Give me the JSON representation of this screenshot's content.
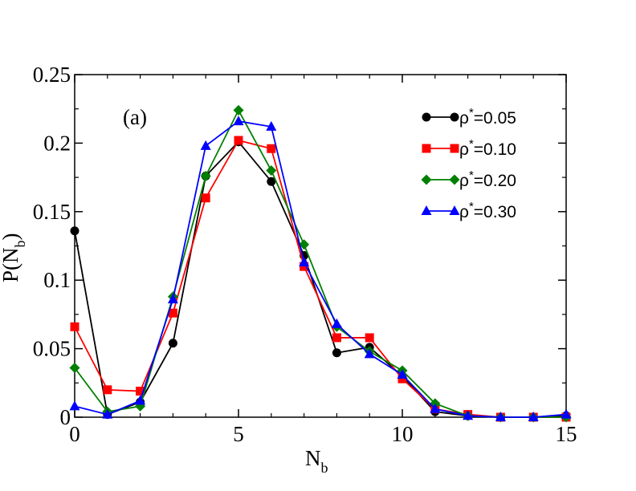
{
  "chart_data": {
    "type": "line",
    "panel_label": "(a)",
    "xlabel": {
      "main": "N",
      "sub": "b"
    },
    "ylabel": {
      "prefix": "P(N",
      "sub": "b",
      "suffix": ")"
    },
    "xlim": [
      0,
      15
    ],
    "ylim": [
      0,
      0.25
    ],
    "xticks": [
      0,
      5,
      10,
      15
    ],
    "xtick_labels": [
      "0",
      "5",
      "10",
      "15"
    ],
    "yticks": [
      0,
      0.05,
      0.1,
      0.15,
      0.2,
      0.25
    ],
    "ytick_labels": [
      "0",
      "0.05",
      "0.1",
      "0.15",
      "0.2",
      "0.25"
    ],
    "legend_position": "top-right",
    "series": [
      {
        "name": "ρ*=0.05",
        "legend": {
          "base": "ρ",
          "sup": "*",
          "value": "=0.05"
        },
        "color": "#000000",
        "marker": "circle",
        "x": [
          0,
          1,
          2,
          3,
          4,
          5,
          6,
          7,
          8,
          9,
          10,
          11,
          12,
          13,
          14,
          15
        ],
        "values": [
          0.136,
          0.002,
          0.011,
          0.054,
          0.176,
          0.201,
          0.172,
          0.118,
          0.047,
          0.051,
          0.03,
          0.004,
          0.001,
          0.0,
          0.0,
          0.001
        ]
      },
      {
        "name": "ρ*=0.10",
        "legend": {
          "base": "ρ",
          "sup": "*",
          "value": "=0.10"
        },
        "color": "#ff0000",
        "marker": "square",
        "x": [
          0,
          1,
          2,
          3,
          4,
          5,
          6,
          7,
          8,
          9,
          10,
          11,
          12,
          13,
          14,
          15
        ],
        "values": [
          0.066,
          0.02,
          0.019,
          0.076,
          0.16,
          0.202,
          0.196,
          0.11,
          0.058,
          0.058,
          0.028,
          0.006,
          0.002,
          0.0,
          0.0,
          0.0
        ]
      },
      {
        "name": "ρ*=0.20",
        "legend": {
          "base": "ρ",
          "sup": "*",
          "value": "=0.20"
        },
        "color": "#008000",
        "marker": "diamond",
        "x": [
          0,
          1,
          2,
          3,
          4,
          5,
          6,
          7,
          8,
          9,
          10,
          11,
          12,
          13,
          14,
          15
        ],
        "values": [
          0.036,
          0.004,
          0.008,
          0.088,
          0.176,
          0.224,
          0.18,
          0.126,
          0.066,
          0.048,
          0.034,
          0.01,
          0.001,
          0.0,
          0.0,
          0.0
        ]
      },
      {
        "name": "ρ*=0.30",
        "legend": {
          "base": "ρ",
          "sup": "*",
          "value": "=0.30"
        },
        "color": "#0000ff",
        "marker": "triangle",
        "x": [
          0,
          1,
          2,
          3,
          4,
          5,
          6,
          7,
          8,
          9,
          10,
          11,
          12,
          13,
          14,
          15
        ],
        "values": [
          0.008,
          0.002,
          0.012,
          0.086,
          0.198,
          0.216,
          0.212,
          0.113,
          0.068,
          0.046,
          0.031,
          0.006,
          0.001,
          0.0,
          0.0,
          0.002
        ]
      }
    ]
  }
}
